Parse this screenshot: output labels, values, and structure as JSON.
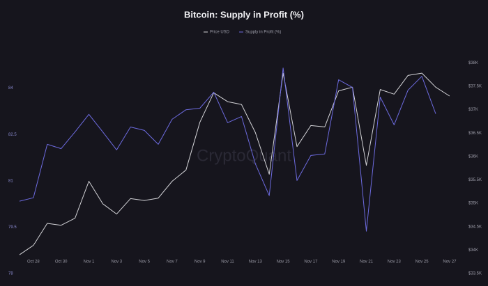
{
  "chart_data": {
    "type": "line",
    "title": "Bitcoin: Supply in Profit (%)",
    "watermark": "CryptoQuant",
    "categories": [
      null,
      "Oct 28",
      null,
      "Oct 30",
      null,
      "Nov 1",
      null,
      "Nov 3",
      null,
      "Nov 5",
      null,
      "Nov 7",
      null,
      "Nov 9",
      null,
      "Nov 11",
      null,
      "Nov 13",
      null,
      "Nov 15",
      null,
      "Nov 17",
      null,
      "Nov 19",
      null,
      "Nov 21",
      null,
      "Nov 23",
      null,
      "Nov 25",
      null,
      "Nov 27"
    ],
    "series": [
      {
        "name": "Price USD",
        "color": "#d4d4d8",
        "axis": "y2",
        "values": [
          33900,
          34100,
          34570,
          34530,
          34680,
          35470,
          34990,
          34770,
          35100,
          35060,
          35110,
          35470,
          35710,
          36730,
          37360,
          37170,
          37110,
          36510,
          35620,
          37780,
          36210,
          36660,
          36630,
          37400,
          37480,
          35810,
          37430,
          37330,
          37730,
          37780,
          37480,
          37290
        ]
      },
      {
        "name": "Supply in Profit (%)",
        "color": "#6d6be0",
        "values": [
          80.34,
          80.45,
          82.18,
          82.04,
          82.58,
          83.15,
          82.58,
          82.0,
          82.74,
          82.63,
          82.18,
          82.99,
          83.3,
          83.35,
          83.87,
          82.88,
          83.08,
          81.55,
          80.52,
          84.65,
          81.01,
          81.82,
          81.87,
          84.27,
          84.02,
          79.37,
          83.71,
          82.81,
          83.93,
          84.38,
          83.17,
          null
        ]
      }
    ],
    "ylim": [
      78,
      85.5
    ],
    "yticks": [
      78,
      79.5,
      81,
      82.5,
      84
    ],
    "y2lim": [
      33500,
      38450
    ],
    "y2ticks": [
      {
        "value": 33500,
        "label": "$33.5K"
      },
      {
        "value": 34000,
        "label": "$34K"
      },
      {
        "value": 34500,
        "label": "$34.5K"
      },
      {
        "value": 35000,
        "label": "$35K"
      },
      {
        "value": 35500,
        "label": "$35.5K"
      },
      {
        "value": 36000,
        "label": "$36K"
      },
      {
        "value": 36500,
        "label": "$36.5K"
      },
      {
        "value": 37000,
        "label": "$37K"
      },
      {
        "value": 37500,
        "label": "$37.5K"
      },
      {
        "value": 38000,
        "label": "$38K"
      }
    ],
    "grid": false,
    "legend": "top"
  }
}
